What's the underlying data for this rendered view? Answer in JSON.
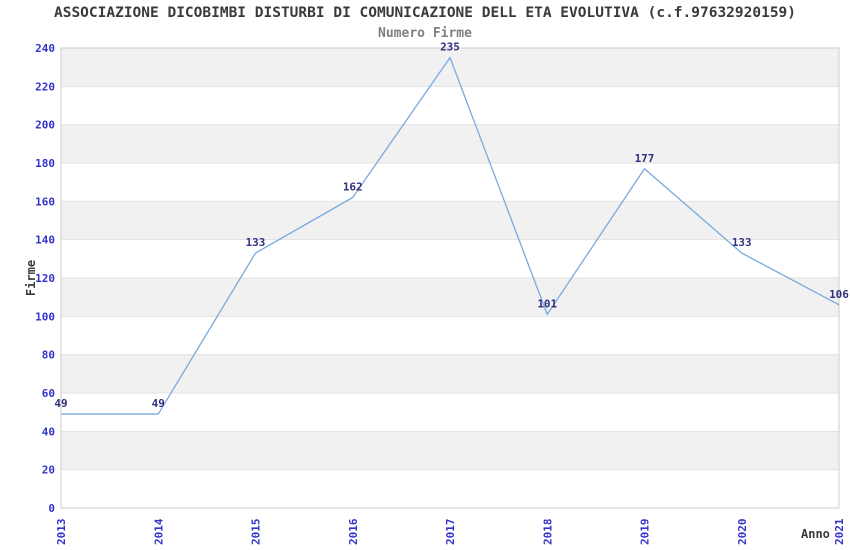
{
  "chart_data": {
    "type": "line",
    "title": "ASSOCIAZIONE DICOBIMBI DISTURBI DI COMUNICAZIONE DELL ETA EVOLUTIVA (c.f.97632920159)",
    "subtitle": "Numero Firme",
    "xlabel": "Anno",
    "ylabel": "Firme",
    "categories": [
      "2013",
      "2014",
      "2015",
      "2016",
      "2017",
      "2018",
      "2019",
      "2020",
      "2021"
    ],
    "values": [
      49,
      49,
      133,
      162,
      235,
      101,
      177,
      133,
      106
    ],
    "ylim": [
      0,
      240
    ],
    "ytick_step": 20,
    "grid": true,
    "banded_background": true,
    "legend_position": "none",
    "x_tick_rotation": -90,
    "colors": {
      "line": "#79aade",
      "tick_label": "#3333cc",
      "value_label": "#30307f",
      "band_gray": "#f1f1f1",
      "band_white": "#ffffff",
      "grid_line": "#e2e2e2",
      "plot_border": "#cccccc",
      "title_text": "#3a3a3a",
      "subtitle_text": "#808080"
    }
  }
}
